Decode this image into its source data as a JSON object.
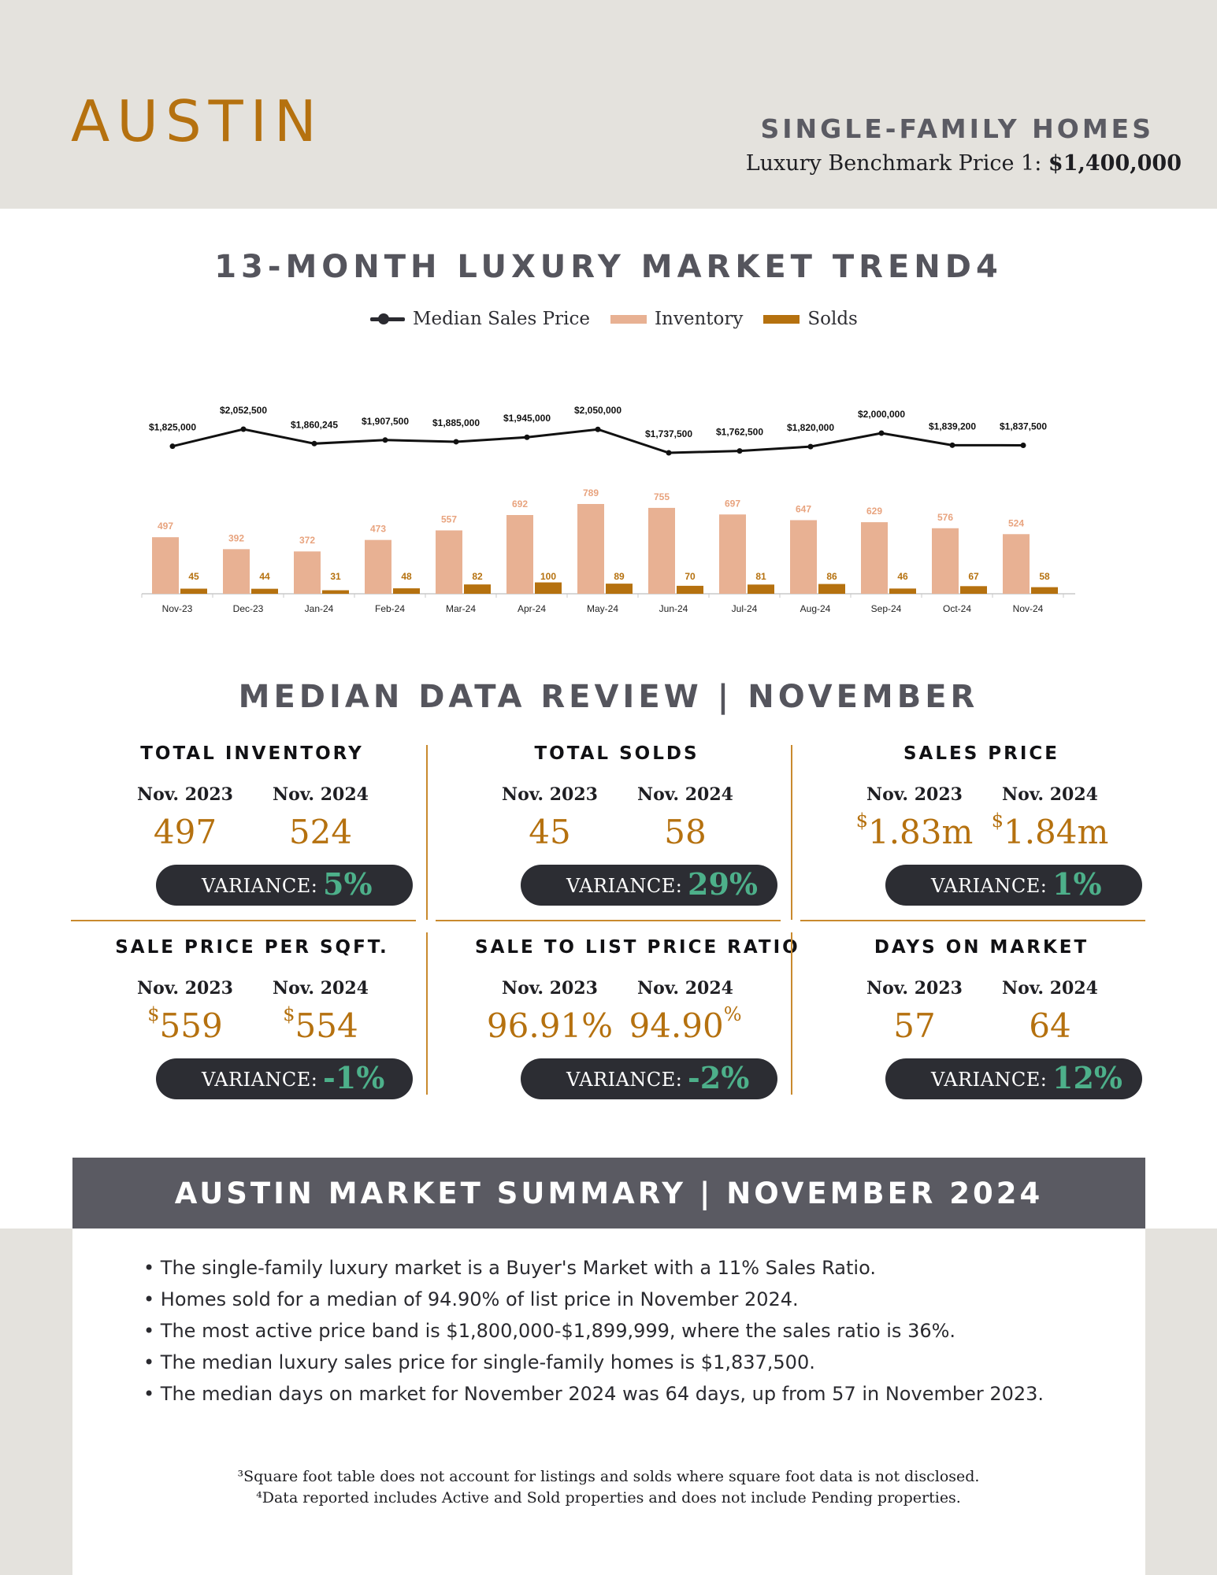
{
  "header": {
    "city": "AUSTIN",
    "segment": "SINGLE-FAMILY HOMES",
    "benchmark_label": "Luxury Benchmark Price 1:",
    "benchmark_value": "$1,400,000"
  },
  "trend_title": "13-MONTH LUXURY MARKET TREND4",
  "legend": [
    {
      "label": "Median Sales Price",
      "color": "#2a2a30"
    },
    {
      "label": "Inventory",
      "color": "#e8b193"
    },
    {
      "label": "Solds",
      "color": "#b5710f"
    }
  ],
  "chart_data": {
    "type": "bar",
    "categories": [
      "Nov-23",
      "Dec-23",
      "Jan-24",
      "Feb-24",
      "Mar-24",
      "Apr-24",
      "May-24",
      "Jun-24",
      "Jul-24",
      "Aug-24",
      "Sep-24",
      "Oct-24",
      "Nov-24"
    ],
    "series": [
      {
        "name": "Inventory",
        "type": "bar",
        "color": "#e8b193",
        "values": [
          497,
          392,
          372,
          473,
          557,
          692,
          789,
          755,
          697,
          647,
          629,
          576,
          524
        ]
      },
      {
        "name": "Solds",
        "type": "bar",
        "color": "#b5710f",
        "values": [
          45,
          44,
          31,
          48,
          82,
          100,
          89,
          70,
          81,
          86,
          46,
          67,
          58
        ]
      },
      {
        "name": "Median Sales Price",
        "type": "line",
        "color": "#111111",
        "values": [
          1825000,
          2052500,
          1860245,
          1907500,
          1885000,
          1945000,
          2050000,
          1737500,
          1762500,
          1820000,
          2000000,
          1839200,
          1837500
        ]
      }
    ],
    "price_labels": [
      "$1,825,000",
      "$2,052,500",
      "$1,860,245",
      "$1,907,500",
      "$1,885,000",
      "$1,945,000",
      "$2,050,000",
      "$1,737,500",
      "$1,762,500",
      "$1,820,000",
      "$2,000,000",
      "$1,839,200",
      "$1,837,500"
    ],
    "grid": false,
    "legend_position": "top"
  },
  "median_title": "MEDIAN DATA REVIEW | NOVEMBER",
  "panels": [
    {
      "title": "TOTAL INVENTORY",
      "y1": "Nov. 2023",
      "y2": "Nov. 2024",
      "v1": "497",
      "v2": "524",
      "v1_prefix": "",
      "v2_prefix": "",
      "v1_suffix": "",
      "v2_suffix": "",
      "var_label": "VARIANCE:",
      "var_value": "5%"
    },
    {
      "title": "TOTAL SOLDS",
      "y1": "Nov. 2023",
      "y2": "Nov. 2024",
      "v1": "45",
      "v2": "58",
      "v1_prefix": "",
      "v2_prefix": "",
      "v1_suffix": "",
      "v2_suffix": "",
      "var_label": "VARIANCE:",
      "var_value": "29%"
    },
    {
      "title": "SALES PRICE",
      "y1": "Nov. 2023",
      "y2": "Nov. 2024",
      "v1": "1.83m",
      "v2": "1.84m",
      "v1_prefix": "$",
      "v2_prefix": "$",
      "v1_suffix": "",
      "v2_suffix": "",
      "var_label": "VARIANCE:",
      "var_value": "1%"
    },
    {
      "title": "SALE PRICE PER SQFT.",
      "y1": "Nov. 2023",
      "y2": "Nov. 2024",
      "v1": "559",
      "v2": "554",
      "v1_prefix": "$",
      "v2_prefix": "$",
      "v1_suffix": "",
      "v2_suffix": "",
      "var_label": "VARIANCE:",
      "var_value": "-1%"
    },
    {
      "title": "SALE TO LIST PRICE RATIO",
      "y1": "Nov. 2023",
      "y2": "Nov. 2024",
      "v1": "96.91%",
      "v2": "94.90",
      "v1_prefix": "",
      "v2_prefix": "",
      "v1_suffix": "",
      "v2_suffix": "%",
      "var_label": "VARIANCE:",
      "var_value": "-2%"
    },
    {
      "title": "DAYS ON MARKET",
      "y1": "Nov. 2023",
      "y2": "Nov. 2024",
      "v1": "57",
      "v2": "64",
      "v1_prefix": "",
      "v2_prefix": "",
      "v1_suffix": "",
      "v2_suffix": "",
      "var_label": "VARIANCE:",
      "var_value": "12%"
    }
  ],
  "summary": {
    "title": "AUSTIN MARKET SUMMARY | NOVEMBER 2024",
    "bullets": [
      "The single-family luxury market is a Buyer's Market with a 11% Sales Ratio.",
      "Homes sold for a median of 94.90% of list price in November 2024.",
      "The most active price band is $1,800,000-$1,899,999, where the sales ratio is 36%.",
      "The median luxury sales price for single-family homes is $1,837,500.",
      "The median days on market for November 2024 was 64 days, up from 57 in November 2023."
    ]
  },
  "footnotes": [
    "³Square foot table does not account for listings and solds where square foot data is not disclosed.",
    "⁴Data reported includes Active and Sold properties and does not include Pending properties."
  ]
}
